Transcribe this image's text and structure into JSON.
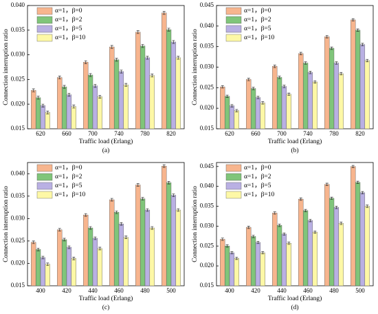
{
  "chart_data": [
    {
      "type": "bar",
      "caption": "(a)",
      "x_label": "Traffic load (Erlang)",
      "y_label": "Connection interruption ratio",
      "categories": [
        "620",
        "660",
        "700",
        "740",
        "780",
        "820"
      ],
      "series": [
        {
          "name": "α=1，β=0",
          "color": "#f7b58e",
          "values": [
            0.0228,
            0.0254,
            0.0285,
            0.0316,
            0.0346,
            0.0385
          ],
          "errors": [
            0.0003,
            0.0003,
            0.0003,
            0.0003,
            0.0003,
            0.0003
          ]
        },
        {
          "name": "α=1，β=2",
          "color": "#80c57a",
          "values": [
            0.0213,
            0.0235,
            0.0259,
            0.029,
            0.0318,
            0.0351
          ],
          "errors": [
            0.0003,
            0.0003,
            0.0003,
            0.0003,
            0.0003,
            0.0003
          ]
        },
        {
          "name": "α=1，β=5",
          "color": "#b9b0e3",
          "values": [
            0.0197,
            0.0219,
            0.0237,
            0.0266,
            0.0294,
            0.0326
          ],
          "errors": [
            0.0003,
            0.0003,
            0.0003,
            0.0003,
            0.0003,
            0.0003
          ]
        },
        {
          "name": "α=1，β=10",
          "color": "#fdf8a6",
          "values": [
            0.0183,
            0.0195,
            0.0215,
            0.0239,
            0.0258,
            0.0294
          ],
          "errors": [
            0.0003,
            0.0003,
            0.0003,
            0.0003,
            0.0003,
            0.0003
          ]
        }
      ],
      "ylim": [
        0.015,
        0.04
      ],
      "yticks": [
        0.015,
        {
          "value": 0.02,
          "label": "0.020"
        },
        0.025,
        {
          "value": 0.03,
          "label": "0.030"
        },
        0.035,
        {
          "value": 0.04,
          "label": "0.040"
        }
      ],
      "legend": "upper left"
    },
    {
      "type": "bar",
      "caption": "(b)",
      "x_label": "Traffic load (Erlang)",
      "y_label": "Connection interruption ratio",
      "categories": [
        "620",
        "660",
        "700",
        "740",
        "780",
        "820"
      ],
      "series": [
        {
          "name": "α=1，β=0",
          "color": "#f7b58e",
          "values": [
            0.0252,
            0.027,
            0.0302,
            0.0333,
            0.0374,
            0.0415
          ],
          "errors": [
            0.0003,
            0.0003,
            0.0003,
            0.0003,
            0.0003,
            0.0003
          ]
        },
        {
          "name": "α=1，β=2",
          "color": "#80c57a",
          "values": [
            0.0229,
            0.0248,
            0.0275,
            0.031,
            0.0346,
            0.039
          ],
          "errors": [
            0.0003,
            0.0003,
            0.0003,
            0.0003,
            0.0003,
            0.0003
          ]
        },
        {
          "name": "α=1，β=5",
          "color": "#b9b0e3",
          "values": [
            0.0206,
            0.0226,
            0.0253,
            0.0287,
            0.031,
            0.0355
          ],
          "errors": [
            0.0003,
            0.0003,
            0.0003,
            0.0003,
            0.0003,
            0.0003
          ]
        },
        {
          "name": "α=1，β=10",
          "color": "#fdf8a6",
          "values": [
            0.0194,
            0.0213,
            0.0234,
            0.0264,
            0.0284,
            0.0316
          ],
          "errors": [
            0.0003,
            0.0003,
            0.0003,
            0.0003,
            0.0003,
            0.0003
          ]
        }
      ],
      "ylim": [
        0.015,
        0.045
      ],
      "yticks": [
        0.015,
        {
          "value": 0.02,
          "label": "0.020"
        },
        0.025,
        {
          "value": 0.03,
          "label": "0.030"
        },
        0.035,
        {
          "value": 0.04,
          "label": "0.040"
        },
        0.045
      ],
      "legend": "upper left"
    },
    {
      "type": "bar",
      "caption": "(c)",
      "x_label": "Traffic load (Erlang)",
      "y_label": "Connection interruption ratio",
      "categories": [
        "400",
        "420",
        "440",
        "460",
        "480",
        "500"
      ],
      "series": [
        {
          "name": "α=1，β=0",
          "color": "#f7b58e",
          "values": [
            0.0247,
            0.0275,
            0.0308,
            0.0342,
            0.0375,
            0.0417
          ],
          "errors": [
            0.0003,
            0.0003,
            0.0003,
            0.0003,
            0.0003,
            0.0003
          ]
        },
        {
          "name": "α=1，β=2",
          "color": "#80c57a",
          "values": [
            0.0231,
            0.0253,
            0.0279,
            0.0314,
            0.0344,
            0.038
          ],
          "errors": [
            0.0003,
            0.0003,
            0.0003,
            0.0003,
            0.0003,
            0.0003
          ]
        },
        {
          "name": "α=1，β=5",
          "color": "#b9b0e3",
          "values": [
            0.0213,
            0.0236,
            0.0256,
            0.0288,
            0.0319,
            0.0352
          ],
          "errors": [
            0.0003,
            0.0003,
            0.0003,
            0.0003,
            0.0003,
            0.0003
          ]
        },
        {
          "name": "α=1，β=10",
          "color": "#fdf8a6",
          "values": [
            0.0198,
            0.0211,
            0.0233,
            0.0258,
            0.0279,
            0.0319
          ],
          "errors": [
            0.0003,
            0.0003,
            0.0003,
            0.0003,
            0.0003,
            0.0003
          ]
        }
      ],
      "ylim": [
        0.015,
        0.0425
      ],
      "yticks": [
        0.015,
        {
          "value": 0.02,
          "label": "0.020"
        },
        0.025,
        {
          "value": 0.03,
          "label": "0.030"
        },
        0.035,
        {
          "value": 0.04,
          "label": "0.040"
        }
      ],
      "legend": "upper left"
    },
    {
      "type": "bar",
      "caption": "(d)",
      "x_label": "Traffic load (Erlang)",
      "y_label": "Connection interruption ratio",
      "categories": [
        "400",
        "420",
        "440",
        "460",
        "480",
        "500"
      ],
      "series": [
        {
          "name": "α=1，β=0",
          "color": "#f7b58e",
          "values": [
            0.0267,
            0.0297,
            0.0333,
            0.0368,
            0.0405,
            0.045
          ],
          "errors": [
            0.0003,
            0.0003,
            0.0003,
            0.0003,
            0.0003,
            0.0003
          ]
        },
        {
          "name": "α=1，β=2",
          "color": "#80c57a",
          "values": [
            0.025,
            0.0274,
            0.0302,
            0.0339,
            0.037,
            0.041
          ],
          "errors": [
            0.0003,
            0.0003,
            0.0003,
            0.0003,
            0.0003,
            0.0003
          ]
        },
        {
          "name": "α=1，β=5",
          "color": "#b9b0e3",
          "values": [
            0.0233,
            0.0259,
            0.028,
            0.0314,
            0.0347,
            0.0384
          ],
          "errors": [
            0.0003,
            0.0003,
            0.0003,
            0.0003,
            0.0003,
            0.0003
          ]
        },
        {
          "name": "α=1，β=10",
          "color": "#fdf8a6",
          "values": [
            0.0219,
            0.0233,
            0.0257,
            0.0285,
            0.0307,
            0.035
          ],
          "errors": [
            0.0003,
            0.0003,
            0.0003,
            0.0003,
            0.0003,
            0.0003
          ]
        }
      ],
      "ylim": [
        0.015,
        0.046
      ],
      "yticks": [
        0.015,
        {
          "value": 0.02,
          "label": "0.020"
        },
        0.025,
        {
          "value": 0.03,
          "label": "0.030"
        },
        0.035,
        {
          "value": 0.04,
          "label": "0.040"
        },
        0.045
      ],
      "legend": "upper left"
    }
  ]
}
